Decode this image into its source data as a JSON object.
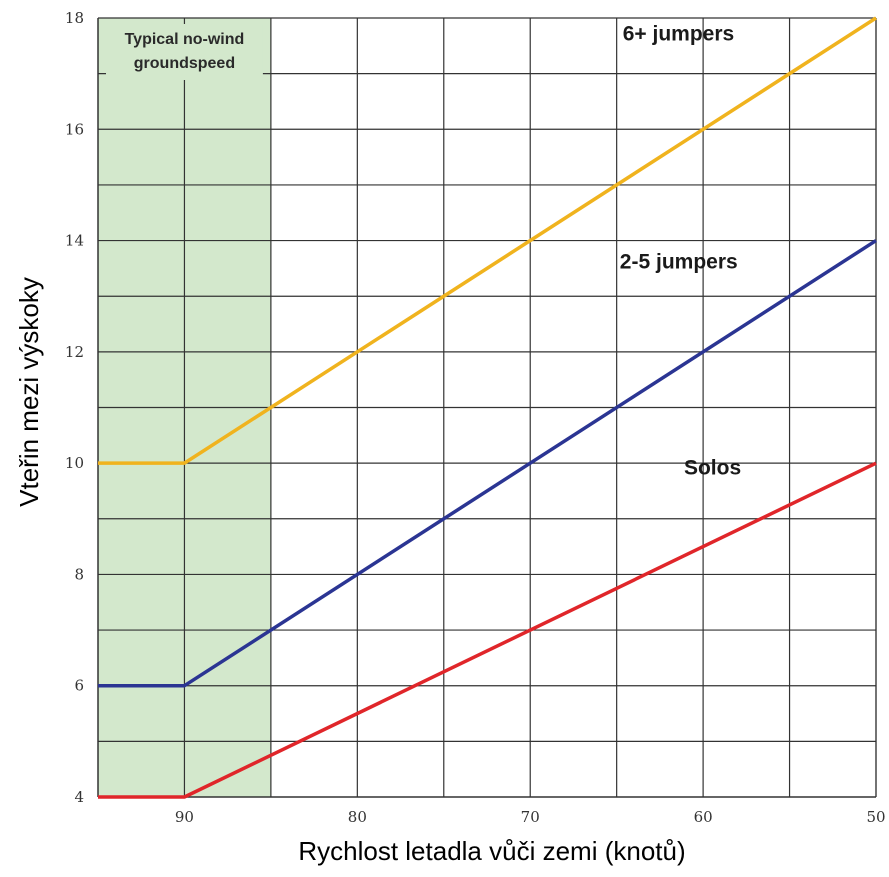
{
  "chart_data": {
    "type": "line",
    "title": "",
    "xlabel": "Rychlost letadla vůči zemi (knotů)",
    "ylabel": "Vteřin mezi výskoky",
    "x_reversed": true,
    "xlim": [
      95,
      50
    ],
    "ylim": [
      4,
      18
    ],
    "x_ticks": [
      90,
      80,
      70,
      60,
      50
    ],
    "y_ticks": [
      4,
      6,
      8,
      10,
      12,
      14,
      16,
      18
    ],
    "grid": true,
    "highlight_band": {
      "x_from": 95,
      "x_to": 85,
      "label_lines": [
        "Typical no-wind",
        "groundspeed"
      ],
      "color": "#d3e8cc"
    },
    "series": [
      {
        "name": "6+ jumpers",
        "color": "#f0b31e",
        "x": [
          95,
          90,
          50
        ],
        "values": [
          10,
          10,
          18
        ]
      },
      {
        "name": "2-5 jumpers",
        "color": "#2b3593",
        "x": [
          95,
          90,
          50
        ],
        "values": [
          6,
          6,
          14
        ]
      },
      {
        "name": "Solos",
        "color": "#e0262a",
        "x": [
          95,
          90,
          50
        ],
        "values": [
          4,
          4,
          10
        ]
      }
    ]
  }
}
